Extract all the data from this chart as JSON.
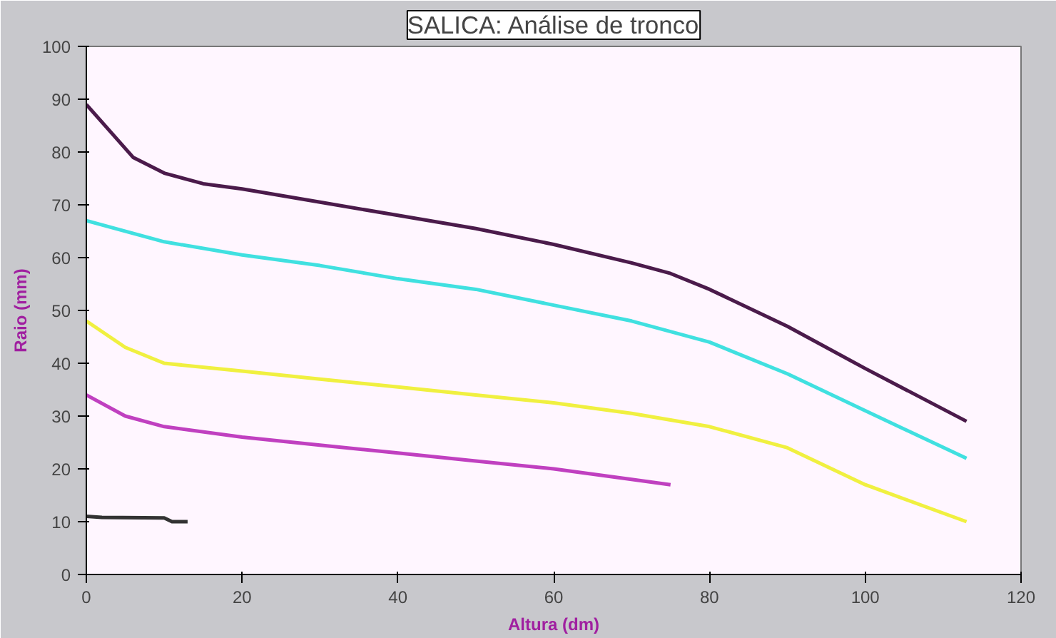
{
  "chart_data": {
    "type": "line",
    "title": "SALICA: Análise de tronco",
    "xlabel": "Altura (dm)",
    "ylabel": "Raio (mm)",
    "xlim": [
      0,
      120
    ],
    "ylim": [
      0,
      100
    ],
    "xticks": [
      0,
      20,
      40,
      60,
      80,
      100,
      120
    ],
    "yticks": [
      0,
      10,
      20,
      30,
      40,
      50,
      60,
      70,
      80,
      90,
      100
    ],
    "grid": false,
    "marker": "none",
    "line_style": "solid",
    "series": [
      {
        "color": "#4b1b4b",
        "x": [
          0,
          3,
          6,
          10,
          15,
          20,
          30,
          40,
          50,
          60,
          70,
          75,
          80,
          90,
          100,
          113
        ],
        "values": [
          89,
          84,
          79,
          76,
          74,
          73,
          70.5,
          68,
          65.5,
          62.5,
          59,
          57,
          54,
          47,
          39,
          29
        ]
      },
      {
        "color": "#40e0e0",
        "x": [
          0,
          10,
          20,
          30,
          40,
          50,
          60,
          70,
          80,
          90,
          100,
          113
        ],
        "values": [
          67,
          63,
          60.5,
          58.5,
          56,
          54,
          51,
          48,
          44,
          38,
          31,
          22
        ]
      },
      {
        "color": "#f0f040",
        "x": [
          0,
          5,
          10,
          20,
          30,
          40,
          50,
          60,
          70,
          80,
          90,
          100,
          113
        ],
        "values": [
          48,
          43,
          40,
          38.5,
          37,
          35.5,
          34,
          32.5,
          30.5,
          28,
          24,
          17,
          10
        ]
      },
      {
        "color": "#c040c0",
        "x": [
          0,
          5,
          10,
          20,
          30,
          40,
          50,
          60,
          70,
          75
        ],
        "values": [
          34,
          30,
          28,
          26,
          24.5,
          23,
          21.5,
          20,
          18,
          17
        ]
      },
      {
        "color": "#333333",
        "x": [
          0,
          2,
          10,
          11,
          13
        ],
        "values": [
          11,
          10.8,
          10.7,
          10,
          10
        ]
      }
    ]
  }
}
